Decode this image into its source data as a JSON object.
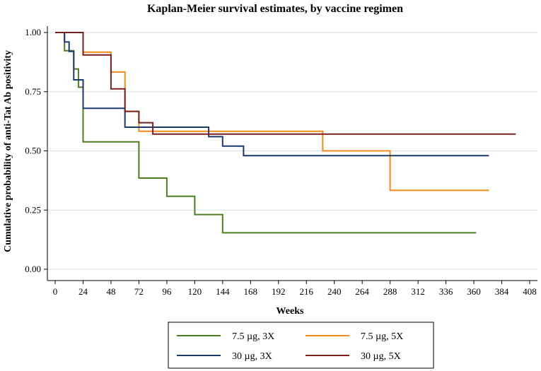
{
  "chart_data": {
    "type": "line",
    "step": true,
    "title": "Kaplan-Meier survival estimates, by vaccine regimen",
    "xlabel": "Weeks",
    "ylabel": "Cumulative probability of anti-Tat Ab positivity",
    "xlim": [
      0,
      408
    ],
    "ylim": [
      0,
      1
    ],
    "xticks": [
      0,
      24,
      48,
      72,
      96,
      120,
      144,
      168,
      192,
      216,
      240,
      264,
      288,
      312,
      336,
      360,
      384,
      408
    ],
    "xtick_labels": [
      "0",
      "24",
      "48",
      "72",
      "96",
      "120",
      "144",
      "168",
      "192",
      "216",
      "240",
      "264",
      "288",
      "312",
      "336",
      "360",
      "384",
      "408"
    ],
    "yticks": [
      0,
      0.25,
      0.5,
      0.75,
      1
    ],
    "ytick_labels": [
      "0.00",
      "0.25",
      "0.50",
      "0.75",
      "1.00"
    ],
    "grid": true,
    "legend_position": "bottom",
    "series": [
      {
        "name": "7.5 µg, 3X",
        "color": "#4d7f21",
        "points": [
          [
            0,
            1
          ],
          [
            8,
            1
          ],
          [
            8,
            0.923
          ],
          [
            16,
            0.923
          ],
          [
            16,
            0.846
          ],
          [
            20,
            0.846
          ],
          [
            20,
            0.769
          ],
          [
            24,
            0.769
          ],
          [
            24,
            0.538
          ],
          [
            72,
            0.538
          ],
          [
            72,
            0.385
          ],
          [
            96,
            0.385
          ],
          [
            96,
            0.308
          ],
          [
            120,
            0.308
          ],
          [
            120,
            0.231
          ],
          [
            144,
            0.231
          ],
          [
            144,
            0.154
          ],
          [
            362,
            0.154
          ]
        ]
      },
      {
        "name": "7.5 µg, 5X",
        "color": "#ef8c1a",
        "points": [
          [
            0,
            1
          ],
          [
            24,
            1
          ],
          [
            24,
            0.917
          ],
          [
            48,
            0.917
          ],
          [
            48,
            0.833
          ],
          [
            60,
            0.833
          ],
          [
            60,
            0.667
          ],
          [
            72,
            0.667
          ],
          [
            72,
            0.583
          ],
          [
            230,
            0.583
          ],
          [
            230,
            0.5
          ],
          [
            288,
            0.5
          ],
          [
            288,
            0.333
          ],
          [
            373,
            0.333
          ]
        ]
      },
      {
        "name": "30 µg, 3X",
        "color": "#1a3a6b",
        "points": [
          [
            0,
            1
          ],
          [
            8,
            1
          ],
          [
            8,
            0.96
          ],
          [
            12,
            0.96
          ],
          [
            12,
            0.92
          ],
          [
            16,
            0.92
          ],
          [
            16,
            0.8
          ],
          [
            20,
            0.8
          ],
          [
            20,
            0.8
          ],
          [
            24,
            0.8
          ],
          [
            24,
            0.68
          ],
          [
            60,
            0.68
          ],
          [
            60,
            0.6
          ],
          [
            132,
            0.6
          ],
          [
            132,
            0.56
          ],
          [
            144,
            0.56
          ],
          [
            144,
            0.52
          ],
          [
            162,
            0.52
          ],
          [
            162,
            0.48
          ],
          [
            373,
            0.48
          ]
        ]
      },
      {
        "name": "30 µg, 5X",
        "color": "#7b1e1e",
        "points": [
          [
            0,
            1
          ],
          [
            24,
            1
          ],
          [
            24,
            0.905
          ],
          [
            48,
            0.905
          ],
          [
            48,
            0.762
          ],
          [
            60,
            0.762
          ],
          [
            60,
            0.667
          ],
          [
            72,
            0.667
          ],
          [
            72,
            0.619
          ],
          [
            84,
            0.619
          ],
          [
            84,
            0.571
          ],
          [
            396,
            0.571
          ]
        ]
      }
    ],
    "legend": {
      "entries": [
        "7.5 µg, 3X",
        "7.5 µg, 5X",
        "30 µg, 3X",
        "30 µg, 5X"
      ]
    }
  }
}
